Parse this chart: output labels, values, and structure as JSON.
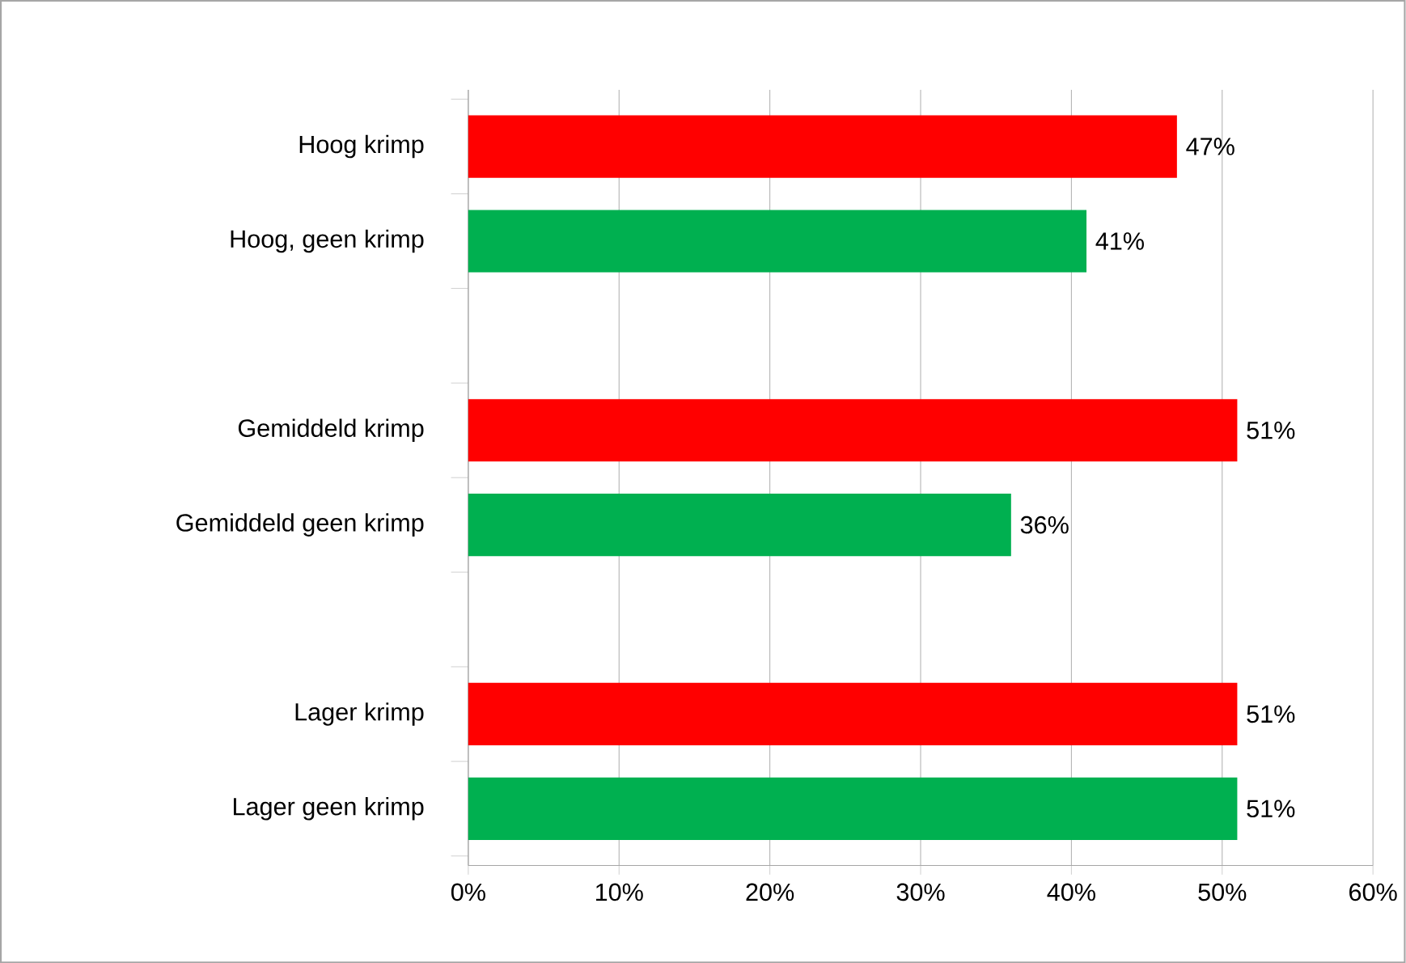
{
  "chart_data": {
    "type": "bar",
    "orientation": "horizontal",
    "categories": [
      "Hoog krimp",
      "Hoog, geen krimp",
      null,
      "Gemiddeld krimp",
      "Gemiddeld geen krimp",
      null,
      "Lager krimp",
      "Lager geen krimp"
    ],
    "values": [
      47,
      41,
      null,
      51,
      36,
      null,
      51,
      51
    ],
    "colors": [
      "#ff0000",
      "#00b050",
      null,
      "#ff0000",
      "#00b050",
      null,
      "#ff0000",
      "#00b050"
    ],
    "value_labels": [
      "47%",
      "41%",
      null,
      "51%",
      "36%",
      null,
      "51%",
      "51%"
    ],
    "xlim": [
      0,
      60
    ],
    "xticks": [
      {
        "value": 0,
        "label": "0%"
      },
      {
        "value": 10,
        "label": "10%"
      },
      {
        "value": 20,
        "label": "20%"
      },
      {
        "value": 30,
        "label": "30%"
      },
      {
        "value": 40,
        "label": "40%"
      },
      {
        "value": 50,
        "label": "50%"
      },
      {
        "value": 60,
        "label": "60%"
      }
    ],
    "grid": "x"
  }
}
